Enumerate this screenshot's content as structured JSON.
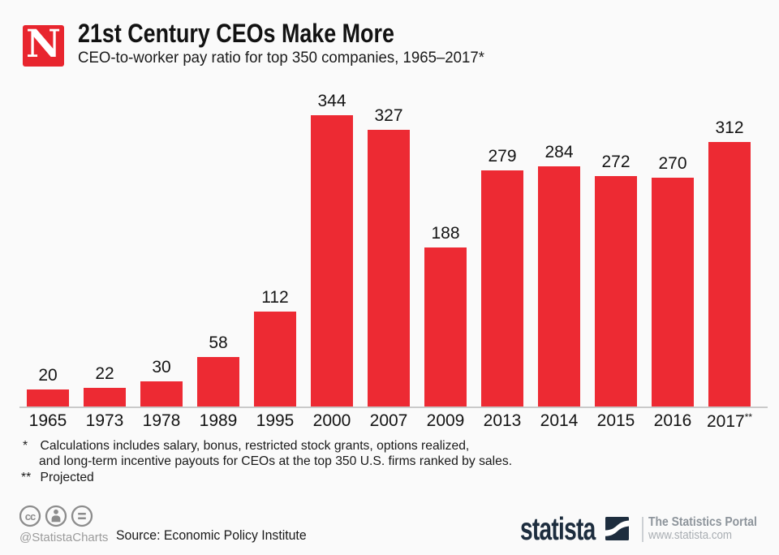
{
  "header": {
    "logo_letter": "N",
    "logo_color": "#e8252e",
    "title": "21st Century CEOs Make More",
    "subtitle": "CEO-to-worker pay ratio for top 350 companies, 1965–2017*"
  },
  "chart_data": {
    "type": "bar",
    "categories": [
      "1965",
      "1973",
      "1978",
      "1989",
      "1995",
      "2000",
      "2007",
      "2009",
      "2013",
      "2014",
      "2015",
      "2016",
      "2017**"
    ],
    "values": [
      20,
      22,
      30,
      58,
      112,
      344,
      327,
      188,
      279,
      284,
      272,
      270,
      312
    ],
    "title": "21st Century CEOs Make More",
    "xlabel": "",
    "ylabel": "CEO-to-worker pay ratio",
    "ylim": [
      0,
      360
    ],
    "bar_color": "#ed2a33",
    "grid": false,
    "legend": false,
    "value_labels": true
  },
  "footnotes": {
    "fn1_marker": "*",
    "fn1_line1": "Calculations includes salary, bonus, restricted stock grants, options realized,",
    "fn1_line2": "and long-term incentive payouts for CEOs at the top 350 U.S. firms ranked by sales.",
    "fn2_marker": "**",
    "fn2_text": "Projected"
  },
  "footer": {
    "license_icons": [
      "cc-icon",
      "attribution-person-icon",
      "equals-icon"
    ],
    "handle": "@StatistaCharts",
    "source": "Source: Economic Policy Institute",
    "brand": "statista",
    "brand_color": "#1d2d3e",
    "tagline": "The Statistics Portal",
    "website": "www.statista.com"
  }
}
